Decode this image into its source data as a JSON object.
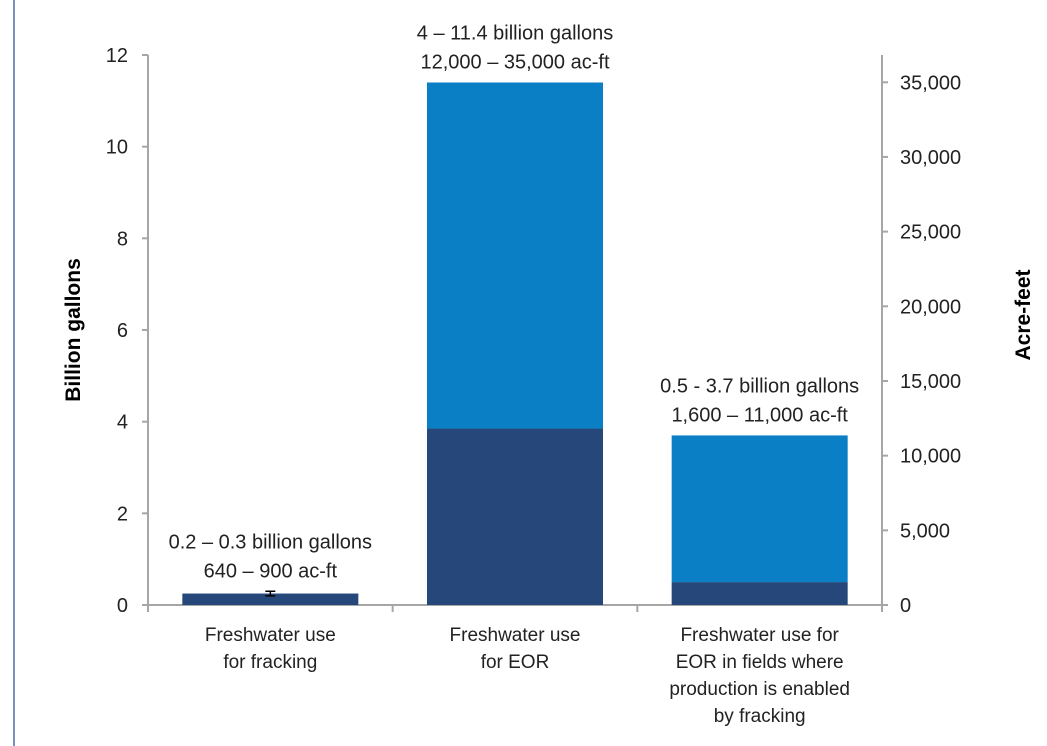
{
  "chart_data": {
    "type": "bar",
    "stacked": true,
    "categories": [
      [
        "Freshwater use",
        "for fracking"
      ],
      [
        "Freshwater use",
        "for EOR"
      ],
      [
        "Freshwater use for",
        "EOR in fields where",
        "production is enabled",
        "by fracking"
      ]
    ],
    "series": [
      {
        "color": "#25477A",
        "values": [
          0.25,
          3.85,
          0.5
        ]
      },
      {
        "color": "#0A7FC6",
        "values": [
          0,
          7.55,
          3.2
        ]
      }
    ],
    "error_bars": [
      {
        "category_index": 0,
        "low": 0.2,
        "high": 0.3
      }
    ],
    "bar_annotations": [
      [
        "0.2 – 0.3 billion gallons",
        "640 – 900 ac-ft"
      ],
      [
        "4 – 11.4 billion gallons",
        "12,000 – 35,000 ac-ft"
      ],
      [
        "0.5 - 3.7 billion gallons",
        "1,600 – 11,000 ac-ft"
      ]
    ],
    "y_left": {
      "label": "Billion gallons",
      "ylim": [
        0,
        12
      ],
      "ticks": [
        "0",
        "2",
        "4",
        "6",
        "8",
        "10",
        "12"
      ]
    },
    "y_right": {
      "label": "Acre-feet",
      "ylim": [
        0,
        36826
      ],
      "tick_values": [
        0,
        5000,
        10000,
        15000,
        20000,
        25000,
        30000,
        35000
      ],
      "ticks": [
        "0",
        "5,000",
        "10,000",
        "15,000",
        "20,000",
        "25,000",
        "30,000",
        "35,000"
      ]
    },
    "grid": false,
    "legend": "none"
  },
  "colors": {
    "axis": "#A6A6A6",
    "frame_line": "#4A6FA5"
  }
}
